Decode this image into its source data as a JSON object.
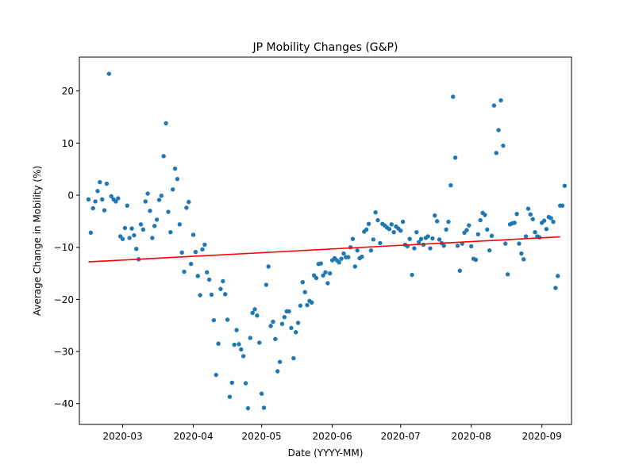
{
  "chart_data": {
    "type": "scatter",
    "title": "JP Mobility Changes (G&P)",
    "xlabel": "Date (YYYY-MM)",
    "ylabel": "Average Change in Mobility (%)",
    "x_start": "2020-02-15",
    "xlim": [
      "2020-02-11",
      "2020-09-14"
    ],
    "ylim": [
      -44,
      26.5
    ],
    "x_ticks": [
      "2020-03",
      "2020-04",
      "2020-05",
      "2020-06",
      "2020-07",
      "2020-08",
      "2020-09"
    ],
    "y_ticks": [
      20,
      10,
      0,
      -10,
      -20,
      -30,
      -40
    ],
    "y_tick_labels": [
      "20",
      "10",
      "0",
      "−10",
      "−20",
      "−30",
      "−40"
    ],
    "grid": false,
    "scatter_color": "#1f77b4",
    "trend_color": "#ff0000",
    "trend_line": {
      "x": [
        "2020-02-15",
        "2020-09-09"
      ],
      "y": [
        -12.8,
        -8.0
      ]
    },
    "series": [
      {
        "values": [
          -0.8,
          -7.2,
          -2.5,
          -1.2,
          0.8,
          2.5,
          -0.8,
          -2.9,
          2.2,
          23.3,
          -0.2,
          -0.8,
          -1.2,
          -0.6,
          -7.9,
          -8.4,
          -6.3,
          -2.0,
          -8.2,
          -6.4,
          -7.7,
          -10.3,
          -12.3,
          -5.6,
          -6.6,
          -1.2,
          0.3,
          -3.0,
          -8.2,
          -5.9,
          -4.7,
          -0.9,
          -0.1,
          7.5,
          13.8,
          -3.2,
          -7.1,
          1.1,
          5.1,
          3.1,
          -5.6,
          -11.0,
          -14.7,
          -2.4,
          -1.3,
          -13.2,
          -7.6,
          -10.9,
          -15.5,
          -19.2,
          -10.4,
          -9.5,
          -14.8,
          -16.2,
          -19.1,
          -24.0,
          -34.5,
          -28.5,
          -18.0,
          -16.5,
          -19.0,
          -23.9,
          -38.7,
          -36.0,
          -28.7,
          -25.9,
          -28.6,
          -29.6,
          -30.9,
          -36.1,
          -40.9,
          -27.4,
          -22.6,
          -21.9,
          -23.1,
          -28.3,
          -38.1,
          -40.8,
          -17.2,
          -13.7,
          -25.1,
          -24.3,
          -27.6,
          -33.8,
          -32.0,
          -24.7,
          -23.4,
          -22.3,
          -22.3,
          -25.5,
          -31.3,
          -26.3,
          -24.5,
          -21.2,
          -16.7,
          -18.6,
          -21.1,
          -20.3,
          -20.6,
          -15.4,
          -15.9,
          -13.2,
          -13.1,
          -15.4,
          -14.8,
          -16.9,
          -15.0,
          -12.5,
          -12.1,
          -12.5,
          -12.9,
          -12.2,
          -11.2,
          -11.9,
          -11.9,
          -10.0,
          -8.4,
          -13.7,
          -10.6,
          -12.1,
          -11.8,
          -7.0,
          -6.6,
          -5.5,
          -10.6,
          -8.5,
          -3.3,
          -4.8,
          -9.2,
          -5.5,
          -5.8,
          -6.2,
          -6.5,
          -5.6,
          -7.1,
          -6.0,
          -6.4,
          -6.8,
          -5.1,
          -9.5,
          -9.8,
          -8.4,
          -15.3,
          -10.2,
          -7.1,
          -9.0,
          -8.4,
          -9.5,
          -8.2,
          -7.9,
          -10.2,
          -8.3,
          -3.9,
          -5.0,
          -8.5,
          -9.2,
          -9.7,
          -6.6,
          -5.1,
          1.9,
          18.9,
          7.2,
          -9.7,
          -14.5,
          -9.3,
          -7.2,
          -6.7,
          -5.8,
          -9.8,
          -12.2,
          -12.4,
          -7.5,
          -4.8,
          -3.4,
          -3.8,
          -6.6,
          -10.6,
          -7.8,
          17.2,
          8.1,
          12.5,
          18.2,
          9.5,
          -9.3,
          -15.2,
          -5.6,
          -5.4,
          -5.3,
          -3.6,
          -9.3,
          -11.2,
          -12.3,
          -7.9,
          -2.6,
          -3.7,
          -4.6,
          -7.1,
          -7.9,
          -8.1,
          -5.3,
          -4.9,
          -6.5,
          -4.2,
          -4.4,
          -5.1,
          -17.8,
          -15.5,
          -2.0,
          -2.0,
          1.8
        ]
      }
    ]
  }
}
